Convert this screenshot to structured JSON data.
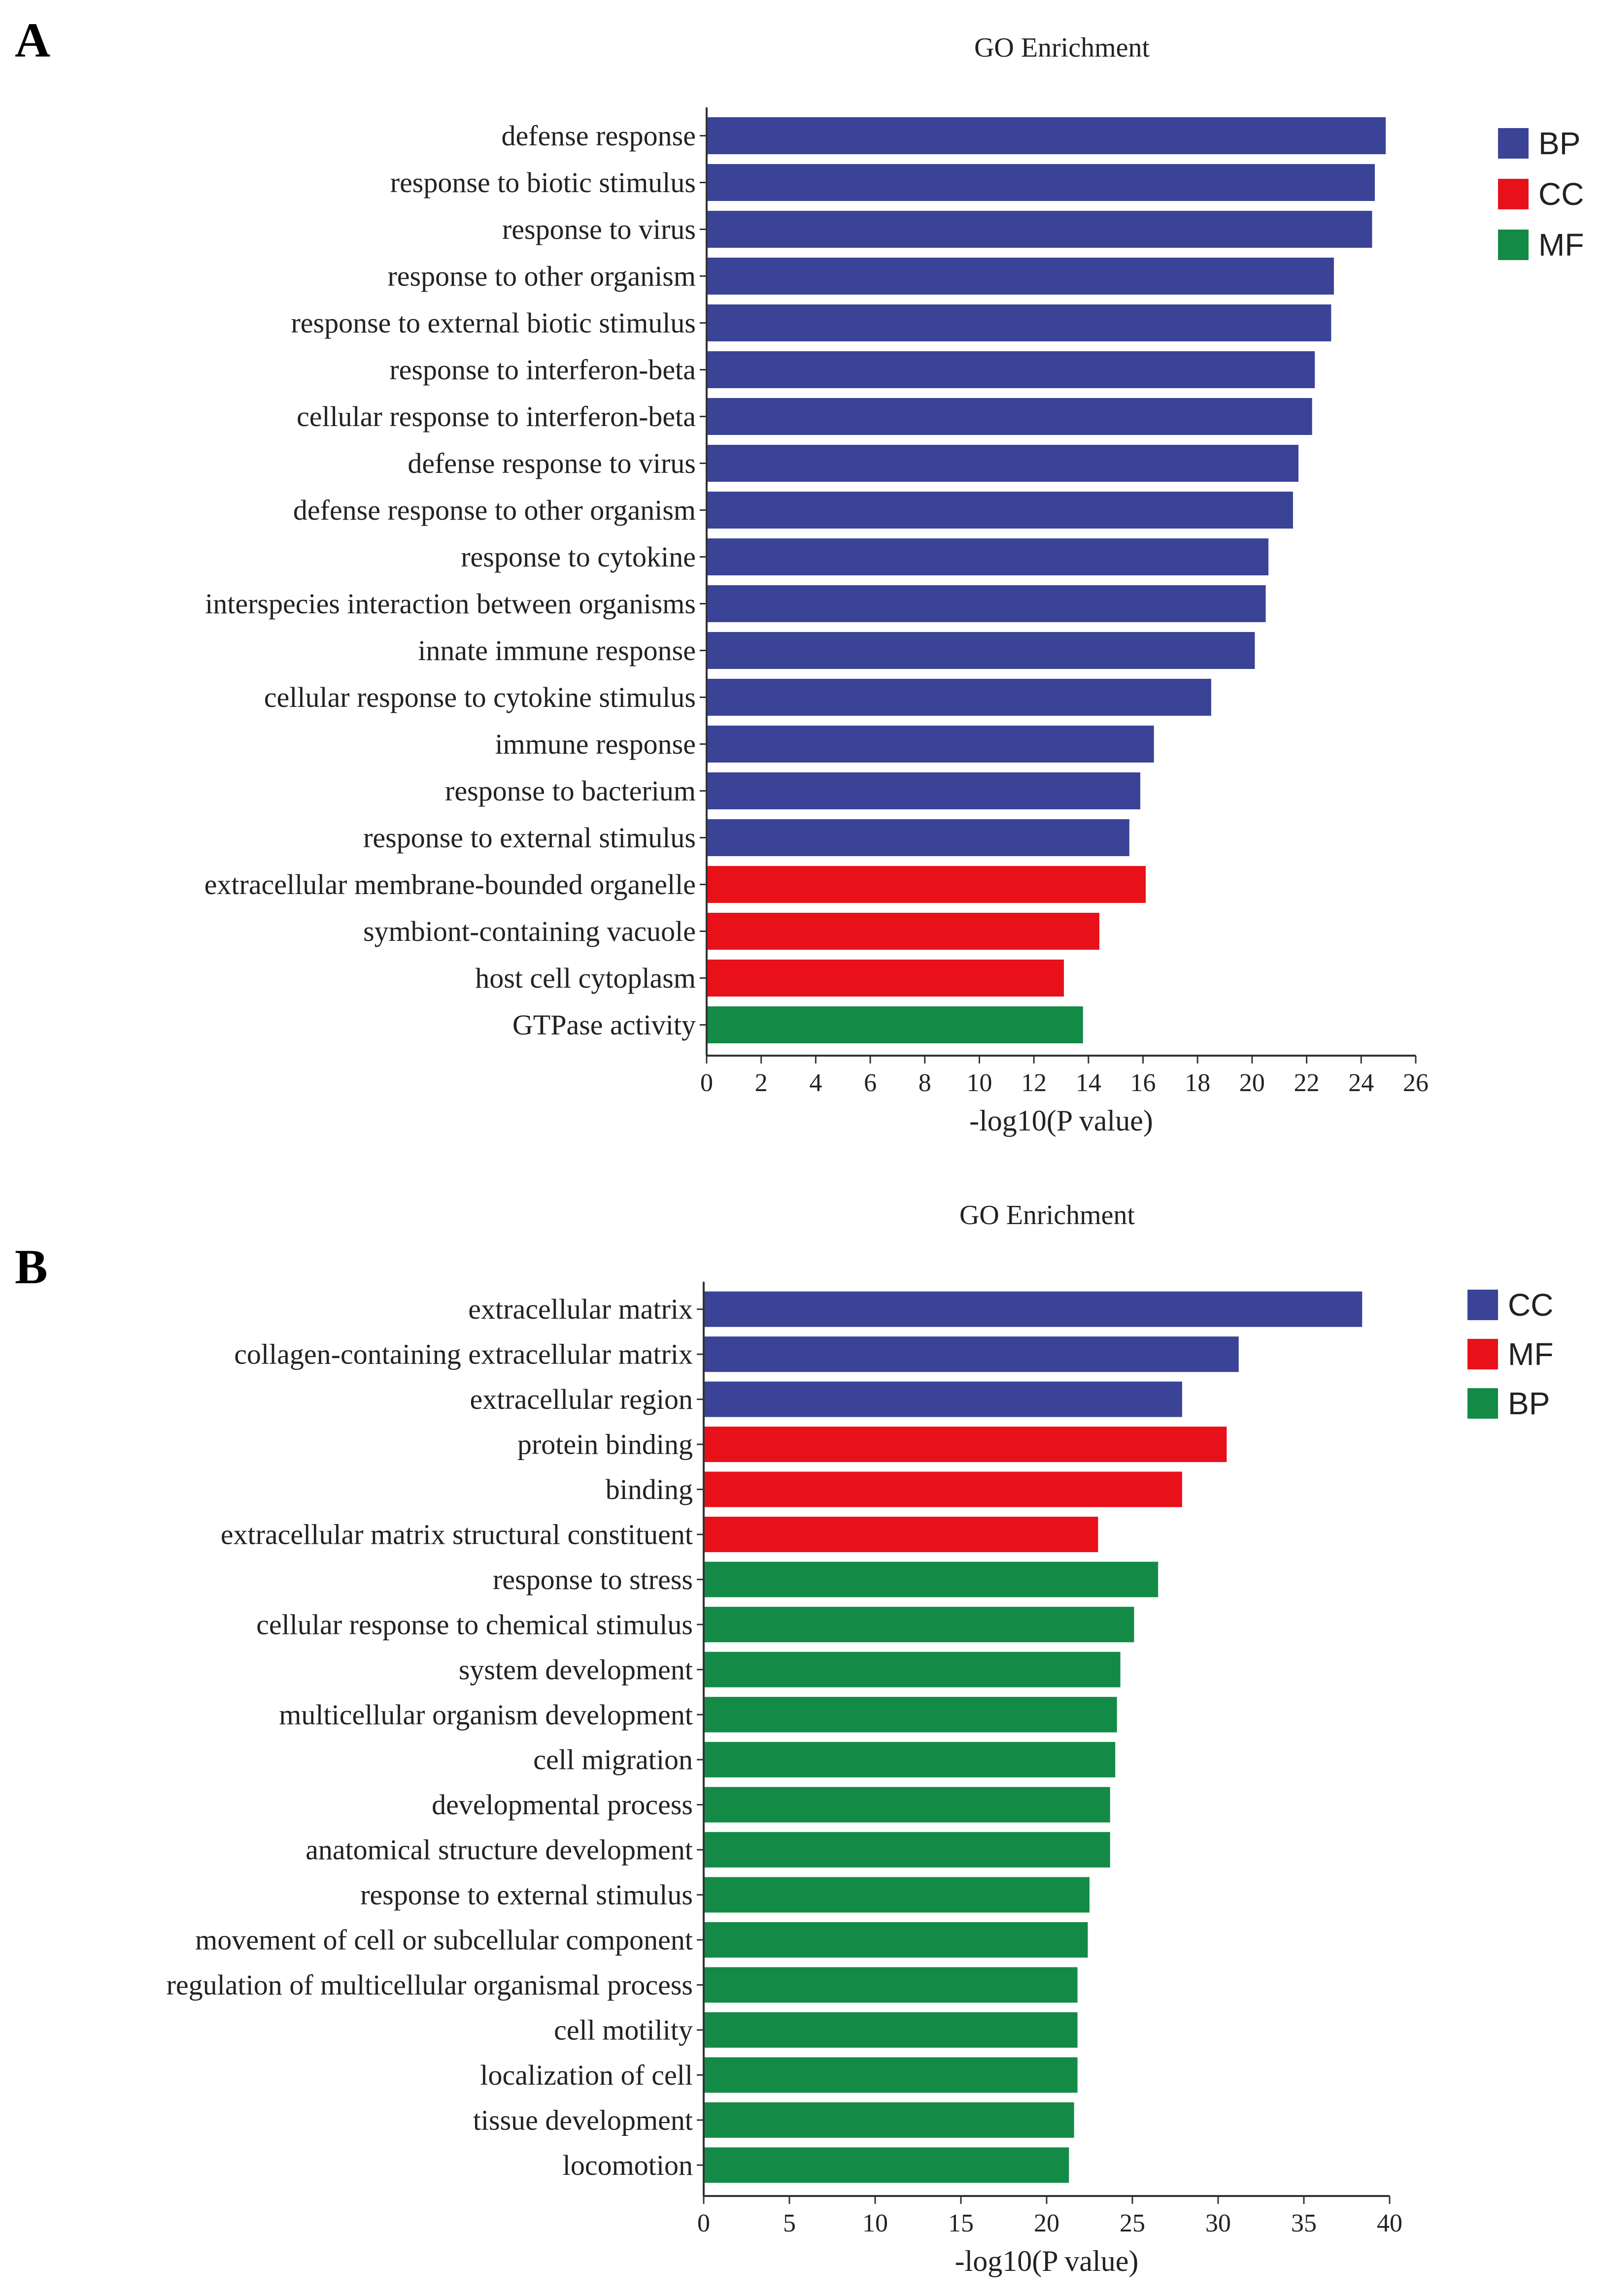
{
  "chart_data": [
    {
      "panel_label": "A",
      "type": "bar",
      "orientation": "horizontal",
      "title": "GO Enrichment",
      "xlabel": "-log10(P value)",
      "ylabel": "",
      "xlim": [
        0,
        26
      ],
      "xticks": [
        0,
        2,
        4,
        6,
        8,
        10,
        12,
        14,
        16,
        18,
        20,
        22,
        24,
        26
      ],
      "legend": [
        {
          "name": "BP",
          "color": "#3a4396"
        },
        {
          "name": "CC",
          "color": "#e8111a"
        },
        {
          "name": "MF",
          "color": "#148a47"
        }
      ],
      "legend_position": "top-right",
      "categories": [
        "defense response",
        "response to biotic stimulus",
        "response to virus",
        "response to other organism",
        "response to external biotic stimulus",
        "response to interferon-beta",
        "cellular response to interferon-beta",
        "defense response to virus",
        "defense response to other organism",
        "response to cytokine",
        "interspecies interaction between organisms",
        "innate immune response",
        "cellular response to cytokine stimulus",
        "immune response",
        "response to bacterium",
        "response to external stimulus",
        "extracellular membrane-bounded organelle",
        "symbiont-containing vacuole",
        "host cell cytoplasm",
        "GTPase activity"
      ],
      "values": [
        24.9,
        24.5,
        24.4,
        23.0,
        22.9,
        22.3,
        22.2,
        21.7,
        21.5,
        20.6,
        20.5,
        20.1,
        18.5,
        16.4,
        15.9,
        15.5,
        16.1,
        14.4,
        13.1,
        13.8
      ],
      "groups": [
        "BP",
        "BP",
        "BP",
        "BP",
        "BP",
        "BP",
        "BP",
        "BP",
        "BP",
        "BP",
        "BP",
        "BP",
        "BP",
        "BP",
        "BP",
        "BP",
        "CC",
        "CC",
        "CC",
        "MF"
      ]
    },
    {
      "panel_label": "B",
      "type": "bar",
      "orientation": "horizontal",
      "title": "GO Enrichment",
      "xlabel": "-log10(P value)",
      "ylabel": "",
      "xlim": [
        0,
        40
      ],
      "xticks": [
        0,
        5,
        10,
        15,
        20,
        25,
        30,
        35,
        40
      ],
      "legend": [
        {
          "name": "CC",
          "color": "#3a4396"
        },
        {
          "name": "MF",
          "color": "#e8111a"
        },
        {
          "name": "BP",
          "color": "#148a47"
        }
      ],
      "legend_position": "top-right",
      "categories": [
        "extracellular matrix",
        "collagen-containing extracellular matrix",
        "extracellular region",
        "protein binding",
        "binding",
        "extracellular matrix structural constituent",
        "response to stress",
        "cellular response to chemical stimulus",
        "system development",
        "multicellular organism development",
        "cell migration",
        "developmental process",
        "anatomical structure development",
        "response to external stimulus",
        "movement of cell or subcellular component",
        "regulation of multicellular organismal process",
        "cell motility",
        "localization of cell",
        "tissue development",
        "locomotion"
      ],
      "values": [
        38.4,
        31.2,
        27.9,
        30.5,
        27.9,
        23.0,
        26.5,
        25.1,
        24.3,
        24.1,
        24.0,
        23.7,
        23.7,
        22.5,
        22.4,
        21.8,
        21.8,
        21.8,
        21.6,
        21.3
      ],
      "groups": [
        "CC",
        "CC",
        "CC",
        "MF",
        "MF",
        "MF",
        "BP",
        "BP",
        "BP",
        "BP",
        "BP",
        "BP",
        "BP",
        "BP",
        "BP",
        "BP",
        "BP",
        "BP",
        "BP",
        "BP"
      ]
    }
  ]
}
